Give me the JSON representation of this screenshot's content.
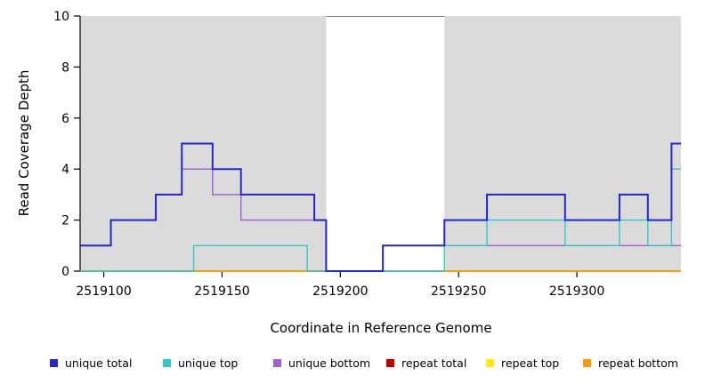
{
  "chart_data": {
    "type": "line",
    "subtype": "step-coverage-plot",
    "title": "",
    "xlabel": "Coordinate in Reference Genome",
    "ylabel": "Read Coverage Depth",
    "xlim": [
      2519090,
      2519344
    ],
    "ylim": [
      0,
      10
    ],
    "x_ticks": [
      2519100,
      2519150,
      2519200,
      2519250,
      2519300
    ],
    "y_ticks": [
      0,
      2,
      4,
      6,
      8,
      10
    ],
    "grid": false,
    "plot_bg": "#dbdbdb",
    "page_bg": "#ffffff",
    "axis_color": "#000000",
    "gap_region": {
      "x0": 2519194,
      "x1": 2519244,
      "color": "#ffffff",
      "top_border_color": "#808080"
    },
    "legend_position": "bottom",
    "series": [
      {
        "name": "repeat total",
        "color": "#c00000",
        "width": 1.4,
        "steps": [
          [
            2519090,
            0
          ]
        ]
      },
      {
        "name": "repeat top",
        "color": "#ffec00",
        "width": 1.4,
        "steps": [
          [
            2519090,
            0
          ]
        ]
      },
      {
        "name": "repeat bottom",
        "color": "#ff9a00",
        "width": 1.6,
        "steps": [
          [
            2519090,
            0
          ]
        ]
      },
      {
        "name": "unique bottom",
        "color": "#9a63cf",
        "width": 1.4,
        "steps": [
          [
            2519090,
            1
          ],
          [
            2519103,
            2
          ],
          [
            2519122,
            3
          ],
          [
            2519133,
            4
          ],
          [
            2519146,
            3
          ],
          [
            2519158,
            2
          ],
          [
            2519194,
            0
          ],
          [
            2519218,
            1
          ]
        ]
      },
      {
        "name": "unique top",
        "color": "#30c9c9",
        "width": 1.4,
        "steps": [
          [
            2519090,
            0
          ],
          [
            2519138,
            1
          ],
          [
            2519186,
            0
          ],
          [
            2519244,
            1
          ],
          [
            2519262,
            2
          ],
          [
            2519295,
            1
          ],
          [
            2519318,
            2
          ],
          [
            2519330,
            1
          ],
          [
            2519340,
            4
          ]
        ]
      },
      {
        "name": "unique total",
        "color": "#2424d0",
        "width": 2,
        "steps": [
          [
            2519090,
            1
          ],
          [
            2519103,
            2
          ],
          [
            2519122,
            3
          ],
          [
            2519133,
            5
          ],
          [
            2519146,
            4
          ],
          [
            2519158,
            3
          ],
          [
            2519189,
            2
          ],
          [
            2519194,
            0
          ],
          [
            2519218,
            1
          ],
          [
            2519244,
            2
          ],
          [
            2519262,
            3
          ],
          [
            2519295,
            2
          ],
          [
            2519318,
            3
          ],
          [
            2519330,
            2
          ],
          [
            2519340,
            5
          ]
        ]
      }
    ],
    "legend": [
      {
        "label": "unique total",
        "color": "#2424d0"
      },
      {
        "label": "unique top",
        "color": "#30c9c9"
      },
      {
        "label": "unique bottom",
        "color": "#9a63cf"
      },
      {
        "label": "repeat total",
        "color": "#c00000"
      },
      {
        "label": "repeat top",
        "color": "#ffec00"
      },
      {
        "label": "repeat bottom",
        "color": "#ff9a00"
      }
    ]
  }
}
